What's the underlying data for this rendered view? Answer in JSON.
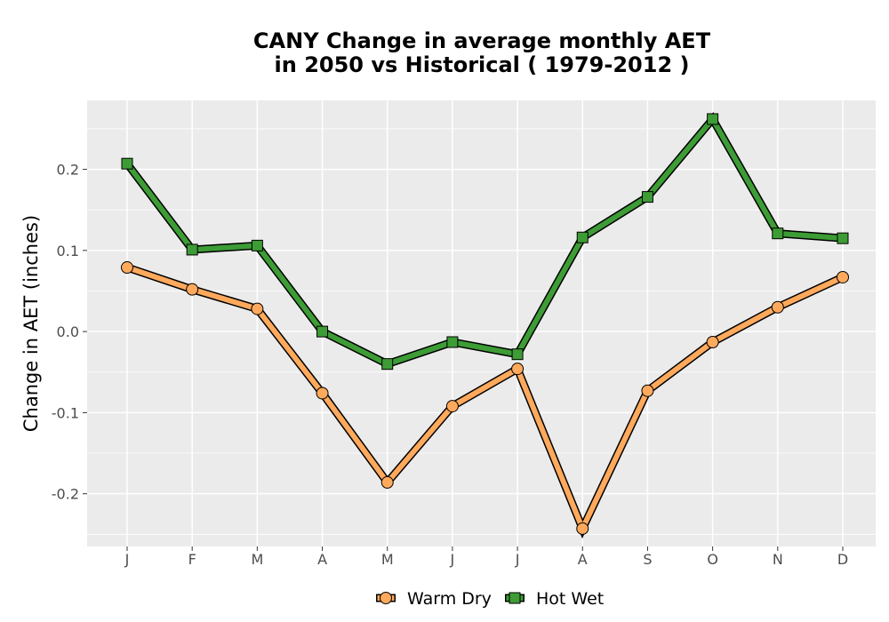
{
  "chart_data": {
    "type": "line",
    "title_lines": [
      "CANY  Change in average monthly AET",
      "in 2050 vs Historical ( 1979-2012 )"
    ],
    "xlabel": "",
    "ylabel": "Change in AET (inches)",
    "categories": [
      "J",
      "F",
      "M",
      "A",
      "M",
      "J",
      "J",
      "A",
      "S",
      "O",
      "N",
      "D"
    ],
    "ylim": [
      -0.265,
      0.285
    ],
    "yticks": [
      -0.2,
      -0.1,
      0.0,
      0.1,
      0.2
    ],
    "ytick_labels": [
      "-0.2",
      "-0.1",
      "0.0",
      "0.1",
      "0.2"
    ],
    "grid": true,
    "legend_position": "bottom",
    "series": [
      {
        "name": "Warm Dry",
        "marker": "circle",
        "color": "#ffa95c",
        "values": [
          0.079,
          0.052,
          0.028,
          -0.076,
          -0.186,
          -0.092,
          -0.046,
          -0.243,
          -0.073,
          -0.013,
          0.03,
          0.067
        ]
      },
      {
        "name": "Hot Wet",
        "marker": "square",
        "color": "#3d9c35",
        "values": [
          0.207,
          0.101,
          0.106,
          0.0,
          -0.04,
          -0.013,
          -0.028,
          0.116,
          0.166,
          0.262,
          0.121,
          0.115
        ]
      }
    ]
  },
  "colors": {
    "panel_background": "#ebebeb",
    "grid_major": "#ffffff",
    "outline": "#000000"
  }
}
